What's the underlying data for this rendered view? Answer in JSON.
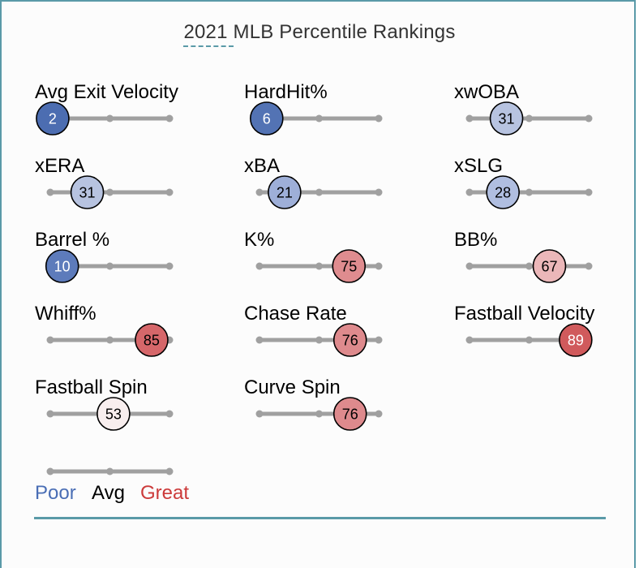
{
  "chart_data": {
    "type": "percentile-slider",
    "title": "2021 MLB Percentile Rankings",
    "range": [
      0,
      100
    ],
    "ticks": [
      0,
      50,
      100
    ],
    "metrics": [
      {
        "label": "Avg Exit Velocity",
        "value": 2,
        "color": "#4c6db1",
        "text_color": "#ffffff"
      },
      {
        "label": "HardHit%",
        "value": 6,
        "color": "#5373b4",
        "text_color": "#ffffff"
      },
      {
        "label": "xwOBA",
        "value": 31,
        "color": "#b7c3e0",
        "text_color": "#000000"
      },
      {
        "label": "xERA",
        "value": 31,
        "color": "#b7c3e0",
        "text_color": "#000000"
      },
      {
        "label": "xBA",
        "value": 21,
        "color": "#9eafd8",
        "text_color": "#000000"
      },
      {
        "label": "xSLG",
        "value": 28,
        "color": "#b0bee0",
        "text_color": "#000000"
      },
      {
        "label": "Barrel %",
        "value": 10,
        "color": "#5d7bbb",
        "text_color": "#ffffff"
      },
      {
        "label": "K%",
        "value": 75,
        "color": "#df8c8f",
        "text_color": "#000000"
      },
      {
        "label": "BB%",
        "value": 67,
        "color": "#ebb7b9",
        "text_color": "#000000"
      },
      {
        "label": "Whiff%",
        "value": 85,
        "color": "#d6676a",
        "text_color": "#000000"
      },
      {
        "label": "Chase Rate",
        "value": 76,
        "color": "#de8a8d",
        "text_color": "#000000"
      },
      {
        "label": "Fastball Velocity",
        "value": 89,
        "color": "#d05a5c",
        "text_color": "#ffffff"
      },
      {
        "label": "Fastball Spin",
        "value": 53,
        "color": "#f8eeee",
        "text_color": "#000000"
      },
      {
        "label": "Curve Spin",
        "value": 76,
        "color": "#de8a8d",
        "text_color": "#000000"
      }
    ],
    "legend": [
      {
        "label": "Poor",
        "color": "#4a6eb5"
      },
      {
        "label": "Avg",
        "color": "#000000"
      },
      {
        "label": "Great",
        "color": "#cc3a3a"
      }
    ]
  },
  "colors": {
    "frame": "#5a9aa8",
    "track": "#a0a0a0",
    "title": "#333333"
  }
}
